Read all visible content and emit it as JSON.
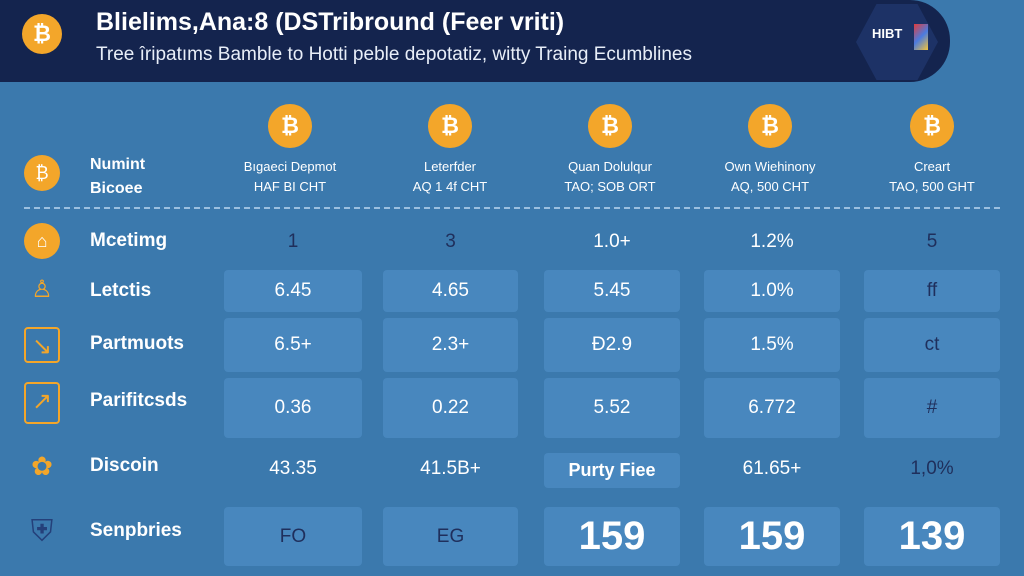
{
  "header": {
    "title": "Blielims,Ana:8 (DSTribround (Feer vriti)",
    "subtitle": "Tree îripatıms Bamble to Hotti peble depotatiz, witty Traing Ecumblines",
    "logo_text": "HIBT"
  },
  "columns": [
    {
      "line1": "Bıgaeci Depmot",
      "line2": "HAF BI CHT"
    },
    {
      "line1": "Leterfder",
      "line2": "AQ 1 4f CHT"
    },
    {
      "line1": "Quan Dolulqur",
      "line2": "TAO; SOB ORT"
    },
    {
      "line1": "Own Wiehinony",
      "line2": "AQ, 500 CHT"
    },
    {
      "line1": "Creart",
      "line2": "TAO, 500 GHT"
    }
  ],
  "corner": {
    "line1": "Numint",
    "line2": "Bicoee"
  },
  "rows": [
    {
      "label": "Mcetimg",
      "icon": "house-icon",
      "values": [
        "1",
        "3",
        "1.0+",
        "1.2%",
        "5"
      ]
    },
    {
      "label": "Letctis",
      "icon": "bell-icon",
      "values": [
        "6.45",
        "4.65",
        "5.45",
        "1.0%",
        "ff"
      ]
    },
    {
      "label": "Partmuots",
      "icon": "chart-icon",
      "values": [
        "6.5+",
        "2.3+",
        "Ð2.9",
        "1.5%",
        "ct"
      ]
    },
    {
      "label": "Parifitcsds",
      "icon": "growth-chart-icon",
      "values": [
        "0.36",
        "0.22",
        "5.52",
        "6.772",
        "#"
      ]
    },
    {
      "label": "Discoin",
      "icon": "coins-icon",
      "values": [
        "43.35",
        "41.5B+",
        "Purty Fiee",
        "61.65+",
        "1,0%"
      ]
    },
    {
      "label": "Senpbries",
      "icon": "shield-icon",
      "values": [
        "FO",
        "EG",
        "159",
        "159",
        "139"
      ]
    }
  ],
  "colors": {
    "header": "#14244e",
    "background": "#3b79ad",
    "cell": "#4887be",
    "accent": "#f3a62a"
  }
}
